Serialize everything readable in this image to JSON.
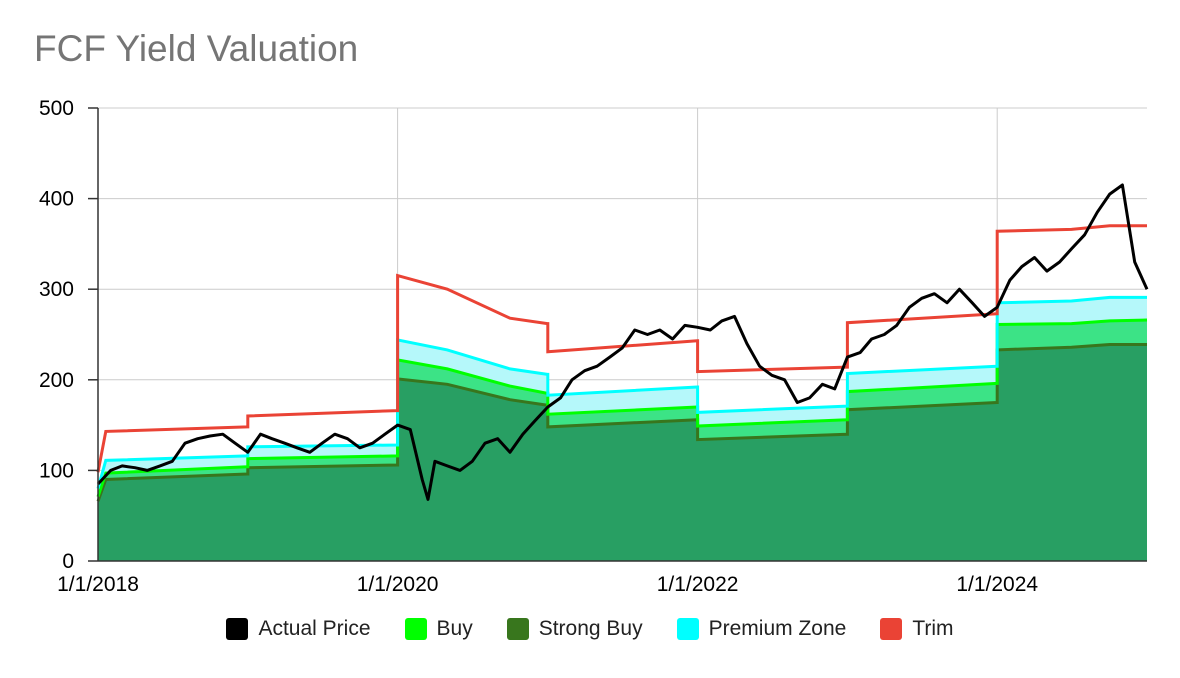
{
  "chart_data": {
    "type": "area",
    "title": "FCF Yield Valuation",
    "xlabel": "",
    "ylabel": "",
    "xlim": [
      "2018-01-01",
      "2024-12-31"
    ],
    "ylim": [
      0,
      500
    ],
    "y_ticks": [
      0,
      100,
      200,
      300,
      400,
      500
    ],
    "x_ticks": [
      "1/1/2018",
      "1/1/2020",
      "1/1/2022",
      "1/1/2024"
    ],
    "grid": true,
    "legend_position": "bottom",
    "bands": {
      "x": [
        "2018-01-01",
        "2018-01-20",
        "2018-12-31",
        "2019-01-01",
        "2019-12-31",
        "2020-01-01",
        "2020-05-01",
        "2020-10-01",
        "2020-12-31",
        "2021-01-01",
        "2021-12-31",
        "2022-01-01",
        "2022-12-31",
        "2023-01-01",
        "2023-12-31",
        "2024-01-01",
        "2024-06-30",
        "2024-10-01",
        "2024-12-31"
      ],
      "strong_buy": [
        66,
        90,
        96,
        103,
        106,
        201,
        195,
        178,
        172,
        148,
        156,
        134,
        140,
        167,
        175,
        233,
        236,
        239,
        239
      ],
      "buy": [
        71,
        97,
        104,
        113,
        116,
        222,
        212,
        193,
        185,
        162,
        170,
        149,
        156,
        187,
        196,
        261,
        262,
        265,
        266
      ],
      "premium_zone": [
        80,
        111,
        116,
        126,
        128,
        244,
        233,
        212,
        206,
        183,
        192,
        164,
        171,
        207,
        215,
        285,
        287,
        291,
        291
      ],
      "trim": [
        98,
        143,
        148,
        160,
        166,
        315,
        300,
        268,
        262,
        231,
        243,
        209,
        214,
        263,
        273,
        364,
        366,
        370,
        370
      ]
    },
    "series": [
      {
        "name": "Actual Price",
        "x": [
          "2018-01-01",
          "2018-02-01",
          "2018-03-01",
          "2018-04-01",
          "2018-05-01",
          "2018-06-01",
          "2018-07-01",
          "2018-08-01",
          "2018-09-01",
          "2018-10-01",
          "2018-11-01",
          "2018-12-01",
          "2019-01-01",
          "2019-02-01",
          "2019-03-01",
          "2019-04-01",
          "2019-05-01",
          "2019-06-01",
          "2019-07-01",
          "2019-08-01",
          "2019-09-01",
          "2019-10-01",
          "2019-11-01",
          "2019-12-01",
          "2020-01-01",
          "2020-02-01",
          "2020-03-01",
          "2020-03-15",
          "2020-04-01",
          "2020-05-01",
          "2020-06-01",
          "2020-07-01",
          "2020-08-01",
          "2020-09-01",
          "2020-10-01",
          "2020-11-01",
          "2020-12-01",
          "2021-01-01",
          "2021-02-01",
          "2021-03-01",
          "2021-04-01",
          "2021-05-01",
          "2021-06-01",
          "2021-07-01",
          "2021-08-01",
          "2021-09-01",
          "2021-10-01",
          "2021-11-01",
          "2021-12-01",
          "2022-01-01",
          "2022-02-01",
          "2022-03-01",
          "2022-04-01",
          "2022-05-01",
          "2022-06-01",
          "2022-07-01",
          "2022-08-01",
          "2022-09-01",
          "2022-10-01",
          "2022-11-01",
          "2022-12-01",
          "2023-01-01",
          "2023-02-01",
          "2023-03-01",
          "2023-04-01",
          "2023-05-01",
          "2023-06-01",
          "2023-07-01",
          "2023-08-01",
          "2023-09-01",
          "2023-10-01",
          "2023-11-01",
          "2023-12-01",
          "2024-01-01",
          "2024-02-01",
          "2024-03-01",
          "2024-04-01",
          "2024-05-01",
          "2024-06-01",
          "2024-07-01",
          "2024-08-01",
          "2024-09-01",
          "2024-10-01",
          "2024-11-01",
          "2024-12-01",
          "2024-12-31"
        ],
        "y": [
          85,
          100,
          105,
          103,
          100,
          105,
          110,
          130,
          135,
          138,
          140,
          130,
          120,
          140,
          135,
          130,
          125,
          120,
          130,
          140,
          135,
          125,
          130,
          140,
          150,
          145,
          90,
          68,
          110,
          105,
          100,
          110,
          130,
          135,
          120,
          140,
          155,
          170,
          180,
          200,
          210,
          215,
          225,
          235,
          255,
          250,
          255,
          245,
          260,
          258,
          255,
          265,
          270,
          240,
          215,
          205,
          200,
          175,
          180,
          195,
          190,
          225,
          230,
          245,
          250,
          260,
          280,
          290,
          295,
          285,
          300,
          285,
          270,
          280,
          310,
          325,
          335,
          320,
          330,
          345,
          360,
          385,
          405,
          415,
          330,
          300
        ]
      }
    ],
    "legend": [
      {
        "name": "Actual Price",
        "color": "#000000"
      },
      {
        "name": "Buy",
        "color": "#00ff00"
      },
      {
        "name": "Strong Buy",
        "color": "#38761d"
      },
      {
        "name": "Premium Zone",
        "color": "#00ffff"
      },
      {
        "name": "Trim",
        "color": "#ea4335"
      }
    ],
    "colors": {
      "strong_buy_fill": "#289f63",
      "strong_buy_line": "#38761d",
      "buy_fill": "#3ce386",
      "buy_line": "#00ff00",
      "premium_fill": "#b5f8fa",
      "premium_line": "#00ffff",
      "trim_line": "#ea4335",
      "price_line": "#000000",
      "grid": "#cccccc",
      "axis": "#333333"
    }
  }
}
